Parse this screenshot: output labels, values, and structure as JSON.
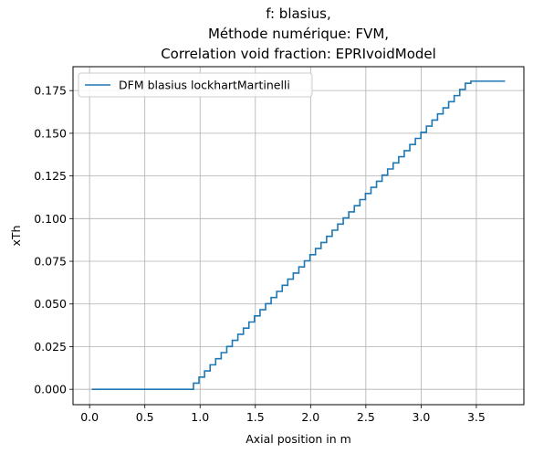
{
  "chart_data": {
    "type": "line",
    "title_lines": [
      "f: blasius,",
      "Méthode numérique: FVM,",
      "Correlation void fraction: EPRIvoidModel"
    ],
    "xlabel": "Axial position in m",
    "ylabel": "xTh",
    "xlim": [
      -0.15,
      3.93
    ],
    "ylim": [
      -0.009,
      0.189
    ],
    "xticks": [
      0.0,
      0.5,
      1.0,
      1.5,
      2.0,
      2.5,
      3.0,
      3.5
    ],
    "xtick_labels": [
      "0.0",
      "0.5",
      "1.0",
      "1.5",
      "2.0",
      "2.5",
      "3.0",
      "3.5"
    ],
    "yticks": [
      0.0,
      0.025,
      0.05,
      0.075,
      0.1,
      0.125,
      0.15,
      0.175
    ],
    "ytick_labels": [
      "0.000",
      "0.025",
      "0.050",
      "0.075",
      "0.100",
      "0.125",
      "0.150",
      "0.175"
    ],
    "grid": true,
    "legend_position": "top-left",
    "series": [
      {
        "name": "DFM blasius lockhartMartinelli",
        "color": "#1f77b4",
        "step": true,
        "x_start": 0.02,
        "x_end": 3.76,
        "y_zero_until": 0.94,
        "step_width": 0.0502,
        "step_increment": 0.003585,
        "y_end": 0.1805
      }
    ]
  }
}
